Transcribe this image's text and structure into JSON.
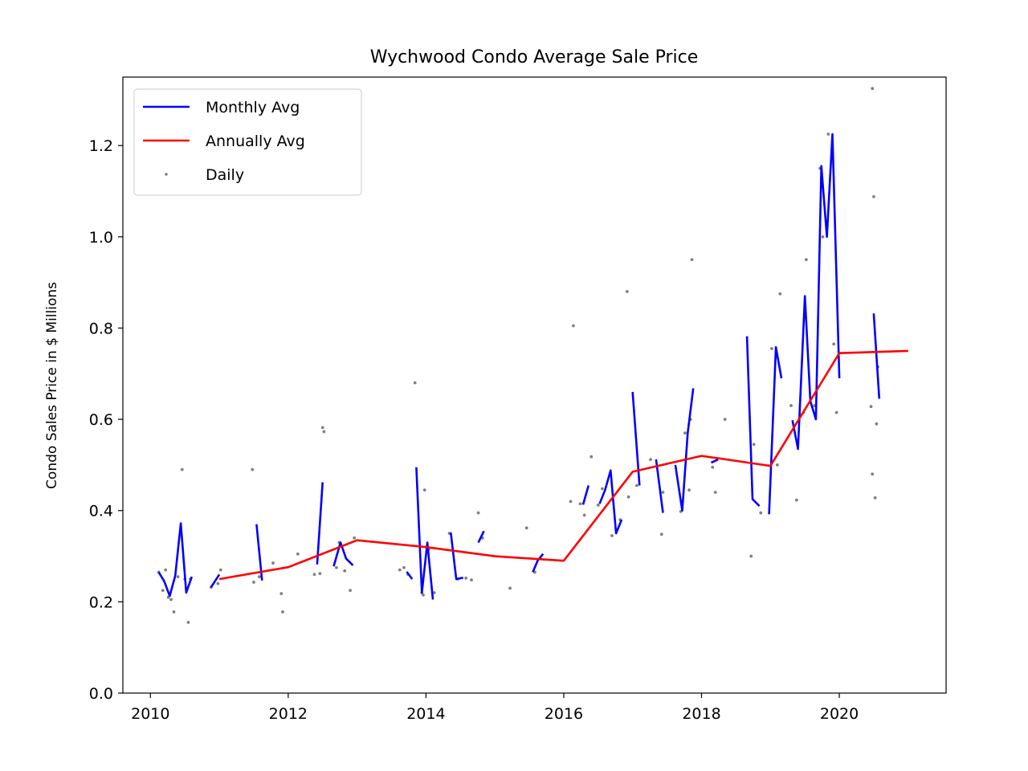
{
  "chart_data": {
    "type": "line",
    "title": "Wychwood Condo Average Sale Price",
    "xlabel": "",
    "ylabel": "Condo Sales Price in $ Millions",
    "xlim": [
      2009.6,
      2021.55
    ],
    "ylim": [
      0.0,
      1.35
    ],
    "x_ticks": [
      2010,
      2012,
      2014,
      2016,
      2018,
      2020
    ],
    "y_ticks": [
      0.0,
      0.2,
      0.4,
      0.6,
      0.8,
      1.0,
      1.2
    ],
    "x_tick_labels": [
      "2010",
      "2012",
      "2014",
      "2016",
      "2018",
      "2020"
    ],
    "y_tick_labels": [
      "0.0",
      "0.2",
      "0.4",
      "0.6",
      "0.8",
      "1.0",
      "1.2"
    ],
    "grid": false,
    "legend_position": "upper-left",
    "series": [
      {
        "name": "Monthly Avg",
        "kind": "line",
        "color": "#0000ff",
        "segments": [
          [
            [
              2010.12,
              0.265
            ],
            [
              2010.2,
              0.245
            ],
            [
              2010.28,
              0.213
            ],
            [
              2010.36,
              0.257
            ],
            [
              2010.44,
              0.372
            ],
            [
              2010.52,
              0.22
            ],
            [
              2010.6,
              0.255
            ]
          ],
          [
            [
              2010.88,
              0.232
            ],
            [
              2011.0,
              0.26
            ]
          ],
          [
            [
              2011.54,
              0.37
            ],
            [
              2011.62,
              0.247
            ]
          ],
          [
            [
              2012.42,
              0.282
            ],
            [
              2012.5,
              0.462
            ]
          ],
          [
            [
              2012.66,
              0.278
            ],
            [
              2012.76,
              0.33
            ],
            [
              2012.84,
              0.295
            ],
            [
              2012.94,
              0.28
            ]
          ],
          [
            [
              2013.72,
              0.266
            ],
            [
              2013.8,
              0.25
            ]
          ],
          [
            [
              2013.86,
              0.495
            ],
            [
              2013.94,
              0.22
            ],
            [
              2014.02,
              0.33
            ],
            [
              2014.1,
              0.205
            ]
          ],
          [
            [
              2014.36,
              0.352
            ],
            [
              2014.44,
              0.25
            ],
            [
              2014.54,
              0.253
            ]
          ],
          [
            [
              2014.76,
              0.33
            ],
            [
              2014.84,
              0.355
            ]
          ],
          [
            [
              2015.55,
              0.265
            ],
            [
              2015.62,
              0.29
            ],
            [
              2015.7,
              0.305
            ]
          ],
          [
            [
              2016.28,
              0.413
            ],
            [
              2016.36,
              0.455
            ]
          ],
          [
            [
              2016.52,
              0.415
            ],
            [
              2016.6,
              0.445
            ],
            [
              2016.68,
              0.488
            ],
            [
              2016.76,
              0.35
            ],
            [
              2016.84,
              0.38
            ]
          ],
          [
            [
              2017.0,
              0.66
            ],
            [
              2017.1,
              0.455
            ]
          ],
          [
            [
              2017.34,
              0.512
            ],
            [
              2017.44,
              0.395
            ]
          ],
          [
            [
              2017.62,
              0.5
            ],
            [
              2017.72,
              0.4
            ],
            [
              2017.8,
              0.57
            ],
            [
              2017.88,
              0.668
            ]
          ],
          [
            [
              2018.14,
              0.505
            ],
            [
              2018.24,
              0.512
            ]
          ],
          [
            [
              2018.66,
              0.782
            ],
            [
              2018.74,
              0.425
            ],
            [
              2018.84,
              0.41
            ]
          ],
          [
            [
              2018.98,
              0.392
            ],
            [
              2019.08,
              0.758
            ],
            [
              2019.16,
              0.69
            ]
          ],
          [
            [
              2019.32,
              0.598
            ],
            [
              2019.4,
              0.535
            ],
            [
              2019.5,
              0.87
            ],
            [
              2019.58,
              0.64
            ],
            [
              2019.66,
              0.6
            ],
            [
              2019.74,
              1.155
            ],
            [
              2019.82,
              1.0
            ],
            [
              2019.9,
              1.225
            ],
            [
              2020.0,
              0.69
            ]
          ],
          [
            [
              2020.5,
              0.832
            ],
            [
              2020.58,
              0.645
            ]
          ]
        ]
      },
      {
        "name": "Annually Avg",
        "kind": "line",
        "color": "#ff0000",
        "x": [
          2011,
          2012,
          2013,
          2014,
          2015,
          2016,
          2017,
          2018,
          2019,
          2020,
          2021
        ],
        "y": [
          0.25,
          0.276,
          0.335,
          0.32,
          0.3,
          0.29,
          0.485,
          0.52,
          0.498,
          0.745,
          0.75
        ]
      },
      {
        "name": "Daily",
        "kind": "scatter",
        "color": "#808080",
        "x": [
          2010.12,
          2010.18,
          2010.22,
          2010.26,
          2010.3,
          2010.34,
          2010.4,
          2010.46,
          2010.5,
          2010.55,
          2010.58,
          2010.88,
          2010.98,
          2011.02,
          2011.48,
          2011.5,
          2011.58,
          2011.78,
          2011.9,
          2011.92,
          2012.14,
          2012.38,
          2012.46,
          2012.5,
          2012.52,
          2012.7,
          2012.74,
          2012.82,
          2012.9,
          2012.96,
          2013.62,
          2013.68,
          2013.74,
          2013.84,
          2013.94,
          2013.98,
          2013.96,
          2014.04,
          2014.12,
          2014.34,
          2014.46,
          2014.58,
          2014.66,
          2014.76,
          2014.82,
          2015.22,
          2015.58,
          2015.46,
          2016.1,
          2016.14,
          2016.24,
          2016.3,
          2016.4,
          2016.5,
          2016.56,
          2016.7,
          2016.82,
          2016.92,
          2016.94,
          2017.06,
          2017.26,
          2017.42,
          2017.44,
          2017.7,
          2017.76,
          2017.82,
          2017.86,
          2017.84,
          2018.16,
          2018.2,
          2018.34,
          2018.72,
          2018.76,
          2018.86,
          2019.02,
          2019.1,
          2019.14,
          2019.3,
          2019.38,
          2019.48,
          2019.52,
          2019.64,
          2019.72,
          2019.76,
          2019.84,
          2019.92,
          2019.96,
          2020.48,
          2020.5,
          2020.48,
          2020.52,
          2020.54,
          2020.56,
          2020.46
        ],
        "y": [
          0.265,
          0.225,
          0.27,
          0.21,
          0.205,
          0.178,
          0.255,
          0.49,
          0.25,
          0.155,
          0.25,
          0.232,
          0.24,
          0.27,
          0.49,
          0.243,
          0.255,
          0.285,
          0.218,
          0.178,
          0.305,
          0.26,
          0.262,
          0.582,
          0.573,
          0.275,
          0.33,
          0.268,
          0.225,
          0.34,
          0.27,
          0.275,
          0.26,
          0.68,
          0.22,
          0.445,
          0.215,
          0.315,
          0.22,
          0.35,
          0.25,
          0.252,
          0.248,
          0.395,
          0.34,
          0.23,
          0.265,
          0.362,
          0.42,
          0.805,
          0.415,
          0.39,
          0.518,
          0.412,
          0.448,
          0.345,
          0.38,
          0.88,
          0.43,
          0.455,
          0.512,
          0.348,
          0.44,
          0.398,
          0.57,
          0.445,
          0.95,
          0.6,
          0.495,
          0.44,
          0.6,
          0.3,
          0.545,
          0.395,
          0.755,
          0.5,
          0.875,
          0.63,
          0.423,
          0.615,
          0.95,
          0.63,
          1.15,
          1.0,
          1.225,
          0.765,
          0.615,
          1.325,
          1.088,
          0.48,
          0.428,
          0.59,
          0.715,
          0.628
        ]
      }
    ]
  }
}
